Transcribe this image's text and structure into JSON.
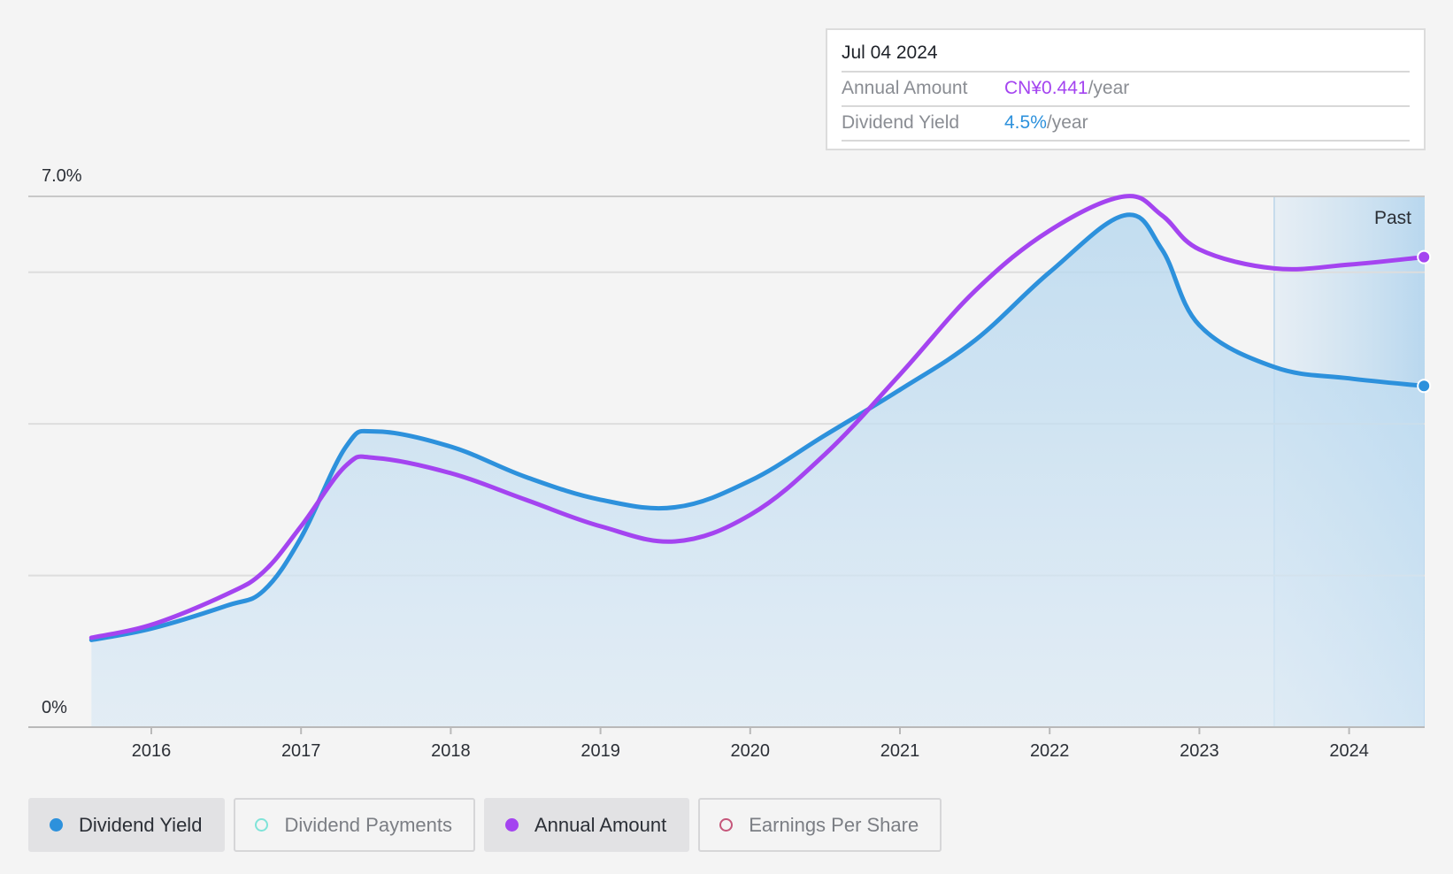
{
  "colors": {
    "yield": "#2d91dc",
    "amount": "#a444f0",
    "payments": "#7fe3d8",
    "eps": "#c5567a"
  },
  "tooltip": {
    "date": "Jul 04 2024",
    "rows": [
      {
        "label": "Annual Amount",
        "value": "CN¥0.441",
        "unit": "/year"
      },
      {
        "label": "Dividend Yield",
        "value": "4.5%",
        "unit": "/year"
      }
    ]
  },
  "legend": [
    {
      "label": "Dividend Yield",
      "active": true,
      "color": "#2d91dc",
      "filled": true
    },
    {
      "label": "Dividend Payments",
      "active": false,
      "color": "#7fe3d8",
      "filled": false
    },
    {
      "label": "Annual Amount",
      "active": true,
      "color": "#a444f0",
      "filled": true
    },
    {
      "label": "Earnings Per Share",
      "active": false,
      "color": "#c5567a",
      "filled": false
    }
  ],
  "chart_data": {
    "type": "line",
    "y_axis": {
      "min_label": "0%",
      "max_label": "7.0%",
      "ylim": [
        0,
        7.0
      ],
      "grid": true
    },
    "x_axis": {
      "ticks": [
        2016,
        2017,
        2018,
        2019,
        2020,
        2021,
        2022,
        2023,
        2024
      ],
      "xlim": [
        2015.6,
        2024.5
      ]
    },
    "past_label": "Past",
    "past_start": 2023.5,
    "series": [
      {
        "name": "Dividend Yield",
        "color": "#2d91dc",
        "area": true,
        "x": [
          2015.6,
          2016.0,
          2016.5,
          2016.75,
          2017.0,
          2017.3,
          2017.5,
          2018.0,
          2018.5,
          2019.0,
          2019.5,
          2020.0,
          2020.5,
          2021.0,
          2021.5,
          2022.0,
          2022.5,
          2022.75,
          2023.0,
          2023.5,
          2024.0,
          2024.5
        ],
        "y": [
          1.15,
          1.3,
          1.6,
          1.8,
          2.5,
          3.7,
          3.9,
          3.7,
          3.3,
          3.0,
          2.9,
          3.25,
          3.85,
          4.45,
          5.1,
          6.0,
          6.75,
          6.3,
          5.3,
          4.75,
          4.6,
          4.5
        ]
      },
      {
        "name": "Annual Amount",
        "color": "#a444f0",
        "area": false,
        "x": [
          2015.6,
          2016.0,
          2016.5,
          2016.75,
          2017.0,
          2017.3,
          2017.5,
          2018.0,
          2018.5,
          2019.0,
          2019.5,
          2020.0,
          2020.5,
          2021.0,
          2021.5,
          2022.0,
          2022.5,
          2022.75,
          2023.0,
          2023.5,
          2024.0,
          2024.5
        ],
        "y": [
          1.18,
          1.35,
          1.75,
          2.05,
          2.65,
          3.45,
          3.55,
          3.35,
          3.0,
          2.65,
          2.45,
          2.8,
          3.6,
          4.65,
          5.75,
          6.55,
          7.0,
          6.75,
          6.3,
          6.05,
          6.1,
          6.2
        ]
      }
    ]
  }
}
